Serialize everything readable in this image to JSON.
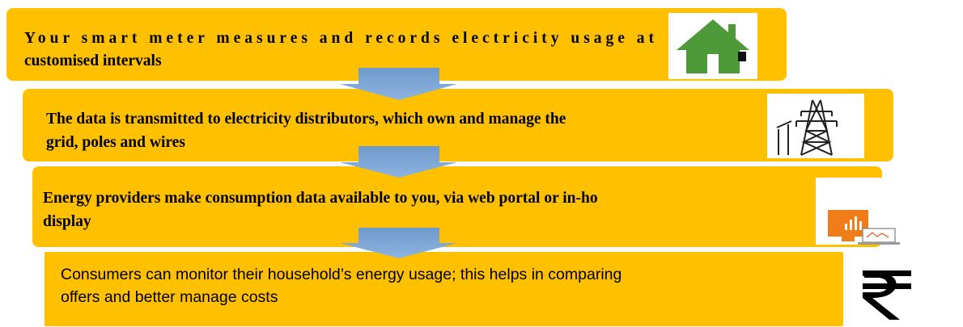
{
  "steps": [
    {
      "lines": [
        "Your smart meter measures and records electricity usage at",
        "customised intervals"
      ]
    },
    {
      "lines": [
        "The data is transmitted to electricity distributors, which own and manage the",
        "grid, poles and wires"
      ]
    },
    {
      "lines": [
        "Energy providers make consumption data available to you, via web portal or in-ho",
        "display"
      ]
    },
    {
      "lines": [
        "Consumers can monitor their household’s energy usage; this helps in comparing",
        "offers and better manage costs"
      ]
    }
  ]
}
